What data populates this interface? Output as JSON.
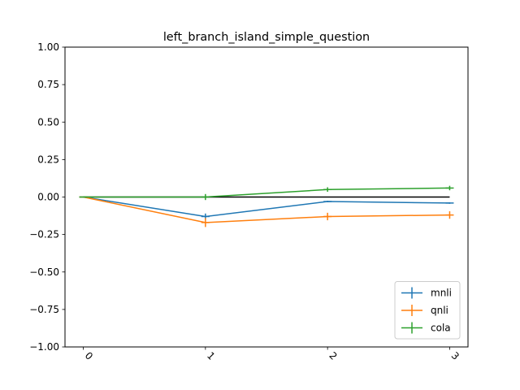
{
  "chart_data": {
    "type": "line",
    "title": "left_branch_island_simple_question",
    "xlabel": "",
    "ylabel": "",
    "x": [
      0,
      1,
      2,
      3
    ],
    "xticks": [
      "0",
      "1",
      "2",
      "3"
    ],
    "xlim": [
      -0.15,
      3.15
    ],
    "ylim": [
      -1.0,
      1.0
    ],
    "yticks": [
      1.0,
      0.75,
      0.5,
      0.25,
      0.0,
      -0.25,
      -0.5,
      -0.75,
      -1.0
    ],
    "ytick_labels": [
      "1.00",
      "0.75",
      "0.50",
      "0.25",
      "0.00",
      "−0.25",
      "−0.50",
      "−0.75",
      "−1.00"
    ],
    "grid": false,
    "legend_position": "lower-right",
    "reference_line": {
      "y": 0,
      "color": "#000000"
    },
    "series": [
      {
        "name": "mnli",
        "color": "#1f77b4",
        "values": [
          0.0,
          -0.13,
          -0.03,
          -0.04
        ],
        "errors": [
          0.0,
          0.02,
          0.005,
          0.005
        ]
      },
      {
        "name": "qnli",
        "color": "#ff7f0e",
        "values": [
          0.0,
          -0.17,
          -0.13,
          -0.12
        ],
        "errors": [
          0.0,
          0.03,
          0.025,
          0.025
        ]
      },
      {
        "name": "cola",
        "color": "#2ca02c",
        "values": [
          0.0,
          0.0,
          0.05,
          0.06
        ],
        "errors": [
          0.0,
          0.02,
          0.015,
          0.015
        ]
      }
    ]
  }
}
